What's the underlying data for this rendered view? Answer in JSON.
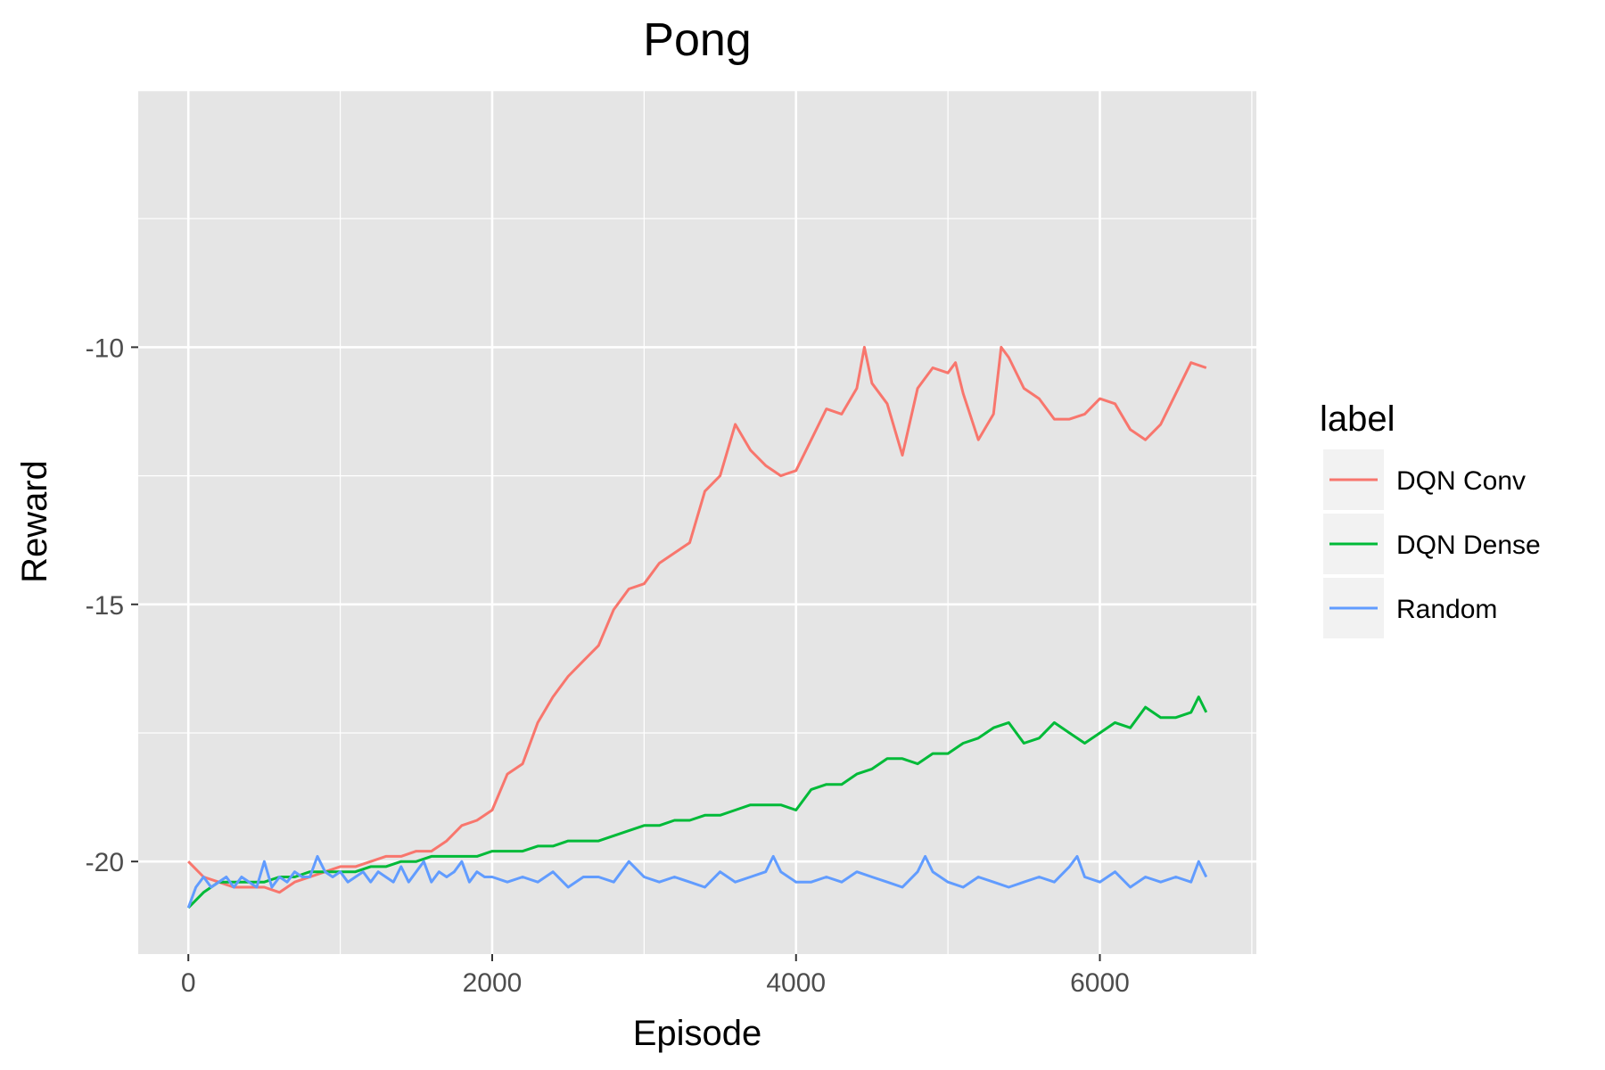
{
  "chart_data": {
    "type": "line",
    "title": "Pong",
    "xlabel": "Episode",
    "ylabel": "Reward",
    "xlim": [
      -330,
      7030
    ],
    "ylim": [
      -21.8,
      -5
    ],
    "x_ticks": [
      0,
      2000,
      4000,
      6000
    ],
    "y_ticks": [
      -20,
      -15,
      -10
    ],
    "grid": true,
    "legend_title": "label",
    "legend_position": "right",
    "series": [
      {
        "name": "DQN Conv",
        "color": "#F8766D",
        "x": [
          0,
          100,
          200,
          300,
          400,
          500,
          600,
          700,
          800,
          900,
          1000,
          1100,
          1200,
          1300,
          1400,
          1500,
          1600,
          1700,
          1800,
          1900,
          2000,
          2100,
          2200,
          2300,
          2400,
          2500,
          2600,
          2700,
          2800,
          2900,
          3000,
          3100,
          3200,
          3300,
          3400,
          3500,
          3600,
          3700,
          3800,
          3900,
          4000,
          4100,
          4200,
          4300,
          4400,
          4450,
          4500,
          4600,
          4700,
          4800,
          4900,
          5000,
          5050,
          5100,
          5200,
          5300,
          5350,
          5400,
          5500,
          5600,
          5700,
          5800,
          5900,
          6000,
          6100,
          6200,
          6300,
          6400,
          6500,
          6600,
          6700
        ],
        "y": [
          -20.0,
          -20.3,
          -20.4,
          -20.5,
          -20.5,
          -20.5,
          -20.6,
          -20.4,
          -20.3,
          -20.2,
          -20.1,
          -20.1,
          -20.0,
          -19.9,
          -19.9,
          -19.8,
          -19.8,
          -19.6,
          -19.3,
          -19.2,
          -19.0,
          -18.3,
          -18.1,
          -17.3,
          -16.8,
          -16.4,
          -16.1,
          -15.8,
          -15.1,
          -14.7,
          -14.6,
          -14.2,
          -14.0,
          -13.8,
          -12.8,
          -12.5,
          -11.5,
          -12.0,
          -12.3,
          -12.5,
          -12.4,
          -11.8,
          -11.2,
          -11.3,
          -10.8,
          -10.0,
          -10.7,
          -11.1,
          -12.1,
          -10.8,
          -10.4,
          -10.5,
          -10.3,
          -10.9,
          -11.8,
          -11.3,
          -10.0,
          -10.2,
          -10.8,
          -11.0,
          -11.4,
          -11.4,
          -11.3,
          -11.0,
          -11.1,
          -11.6,
          -11.8,
          -11.5,
          -10.9,
          -10.3,
          -10.4
        ]
      },
      {
        "name": "DQN Dense",
        "color": "#00BA38",
        "x": [
          0,
          100,
          200,
          300,
          400,
          500,
          600,
          700,
          800,
          900,
          1000,
          1100,
          1200,
          1300,
          1400,
          1500,
          1600,
          1700,
          1800,
          1900,
          2000,
          2100,
          2200,
          2300,
          2400,
          2500,
          2600,
          2700,
          2800,
          2900,
          3000,
          3100,
          3200,
          3300,
          3400,
          3500,
          3600,
          3700,
          3800,
          3900,
          4000,
          4100,
          4200,
          4300,
          4400,
          4500,
          4600,
          4700,
          4800,
          4900,
          5000,
          5100,
          5200,
          5300,
          5400,
          5500,
          5600,
          5700,
          5800,
          5900,
          6000,
          6100,
          6200,
          6300,
          6400,
          6500,
          6600,
          6650,
          6700
        ],
        "y": [
          -20.9,
          -20.6,
          -20.4,
          -20.4,
          -20.4,
          -20.4,
          -20.3,
          -20.3,
          -20.2,
          -20.2,
          -20.2,
          -20.2,
          -20.1,
          -20.1,
          -20.0,
          -20.0,
          -19.9,
          -19.9,
          -19.9,
          -19.9,
          -19.8,
          -19.8,
          -19.8,
          -19.7,
          -19.7,
          -19.6,
          -19.6,
          -19.6,
          -19.5,
          -19.4,
          -19.3,
          -19.3,
          -19.2,
          -19.2,
          -19.1,
          -19.1,
          -19.0,
          -18.9,
          -18.9,
          -18.9,
          -19.0,
          -18.6,
          -18.5,
          -18.5,
          -18.3,
          -18.2,
          -18.0,
          -18.0,
          -18.1,
          -17.9,
          -17.9,
          -17.7,
          -17.6,
          -17.4,
          -17.3,
          -17.7,
          -17.6,
          -17.3,
          -17.5,
          -17.7,
          -17.5,
          -17.3,
          -17.4,
          -17.0,
          -17.2,
          -17.2,
          -17.1,
          -16.8,
          -17.1
        ]
      },
      {
        "name": "Random",
        "color": "#619CFF",
        "x": [
          0,
          50,
          100,
          150,
          200,
          250,
          300,
          350,
          400,
          450,
          500,
          550,
          600,
          650,
          700,
          750,
          800,
          850,
          900,
          950,
          1000,
          1050,
          1100,
          1150,
          1200,
          1250,
          1300,
          1350,
          1400,
          1450,
          1500,
          1550,
          1600,
          1650,
          1700,
          1750,
          1800,
          1850,
          1900,
          1950,
          2000,
          2100,
          2200,
          2300,
          2400,
          2500,
          2600,
          2700,
          2800,
          2900,
          3000,
          3100,
          3200,
          3300,
          3400,
          3500,
          3600,
          3700,
          3800,
          3850,
          3900,
          4000,
          4100,
          4200,
          4300,
          4400,
          4500,
          4600,
          4700,
          4800,
          4850,
          4900,
          5000,
          5100,
          5200,
          5300,
          5400,
          5500,
          5600,
          5700,
          5800,
          5850,
          5900,
          6000,
          6100,
          6200,
          6300,
          6400,
          6500,
          6600,
          6650,
          6700
        ],
        "y": [
          -20.9,
          -20.5,
          -20.3,
          -20.5,
          -20.4,
          -20.3,
          -20.5,
          -20.3,
          -20.4,
          -20.5,
          -20.0,
          -20.5,
          -20.3,
          -20.4,
          -20.2,
          -20.3,
          -20.3,
          -19.9,
          -20.2,
          -20.3,
          -20.2,
          -20.4,
          -20.3,
          -20.2,
          -20.4,
          -20.2,
          -20.3,
          -20.4,
          -20.1,
          -20.4,
          -20.2,
          -20.0,
          -20.4,
          -20.2,
          -20.3,
          -20.2,
          -20.0,
          -20.4,
          -20.2,
          -20.3,
          -20.3,
          -20.4,
          -20.3,
          -20.4,
          -20.2,
          -20.5,
          -20.3,
          -20.3,
          -20.4,
          -20.0,
          -20.3,
          -20.4,
          -20.3,
          -20.4,
          -20.5,
          -20.2,
          -20.4,
          -20.3,
          -20.2,
          -19.9,
          -20.2,
          -20.4,
          -20.4,
          -20.3,
          -20.4,
          -20.2,
          -20.3,
          -20.4,
          -20.5,
          -20.2,
          -19.9,
          -20.2,
          -20.4,
          -20.5,
          -20.3,
          -20.4,
          -20.5,
          -20.4,
          -20.3,
          -20.4,
          -20.1,
          -19.9,
          -20.3,
          -20.4,
          -20.2,
          -20.5,
          -20.3,
          -20.4,
          -20.3,
          -20.4,
          -20.0,
          -20.3
        ]
      }
    ]
  }
}
